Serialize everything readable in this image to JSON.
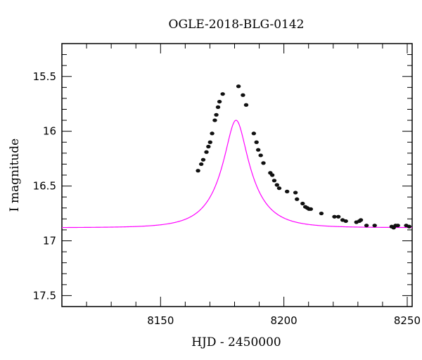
{
  "chart_data": {
    "type": "scatter",
    "title": "OGLE-2018-BLG-0142",
    "xlabel": "HJD - 2450000",
    "ylabel": "I magnitude",
    "xlim": [
      8110,
      8252
    ],
    "ylim": [
      17.6,
      15.2
    ],
    "y_inverted": true,
    "grid": false,
    "xticks": [
      8150,
      8200,
      8250
    ],
    "xtick_labels": [
      "8150",
      "8200",
      "8250"
    ],
    "yticks": [
      15.5,
      16,
      16.5,
      17,
      17.5
    ],
    "ytick_labels": [
      "15.5",
      "16",
      "16.5",
      "17",
      "17.5"
    ],
    "model": {
      "name": "",
      "color": "#ff00ff",
      "baseline_mag": 16.88,
      "t0": 8180.6,
      "u0": 0.3,
      "tE": 13.5,
      "fs": 0.6
    },
    "series": [
      {
        "name": "",
        "color": "#111111",
        "points": [
          [
            8165.2,
            16.36
          ],
          [
            8166.5,
            16.3
          ],
          [
            8167.3,
            16.26
          ],
          [
            8168.6,
            16.19
          ],
          [
            8169.4,
            16.14
          ],
          [
            8170.1,
            16.1
          ],
          [
            8170.9,
            16.02
          ],
          [
            8172.0,
            15.9
          ],
          [
            8172.6,
            15.85
          ],
          [
            8173.3,
            15.78
          ],
          [
            8173.9,
            15.73
          ],
          [
            8175.2,
            15.66
          ],
          [
            8181.6,
            15.59
          ],
          [
            8183.4,
            15.67
          ],
          [
            8184.7,
            15.76
          ],
          [
            8187.8,
            16.02
          ],
          [
            8188.9,
            16.1
          ],
          [
            8189.6,
            16.17
          ],
          [
            8190.6,
            16.22
          ],
          [
            8191.7,
            16.29
          ],
          [
            8194.5,
            16.38
          ],
          [
            8195.3,
            16.4
          ],
          [
            8196.1,
            16.45
          ],
          [
            8197.2,
            16.49
          ],
          [
            8198.1,
            16.52
          ],
          [
            8201.3,
            16.55
          ],
          [
            8204.7,
            16.56
          ],
          [
            8205.3,
            16.62
          ],
          [
            8207.6,
            16.66
          ],
          [
            8208.7,
            16.69
          ],
          [
            8209.5,
            16.7
          ],
          [
            8210.2,
            16.71
          ],
          [
            8210.9,
            16.71
          ],
          [
            8215.2,
            16.75
          ],
          [
            8220.5,
            16.78
          ],
          [
            8222.1,
            16.78
          ],
          [
            8223.8,
            16.81
          ],
          [
            8225.1,
            16.82
          ],
          [
            8229.4,
            16.83
          ],
          [
            8230.6,
            16.82
          ],
          [
            8231.2,
            16.81
          ],
          [
            8233.5,
            16.86
          ],
          [
            8236.8,
            16.86
          ],
          [
            8243.7,
            16.87
          ],
          [
            8244.5,
            16.88
          ],
          [
            8245.3,
            16.86
          ],
          [
            8246.2,
            16.86
          ],
          [
            8249.6,
            16.86
          ],
          [
            8250.8,
            16.87
          ]
        ]
      }
    ]
  }
}
